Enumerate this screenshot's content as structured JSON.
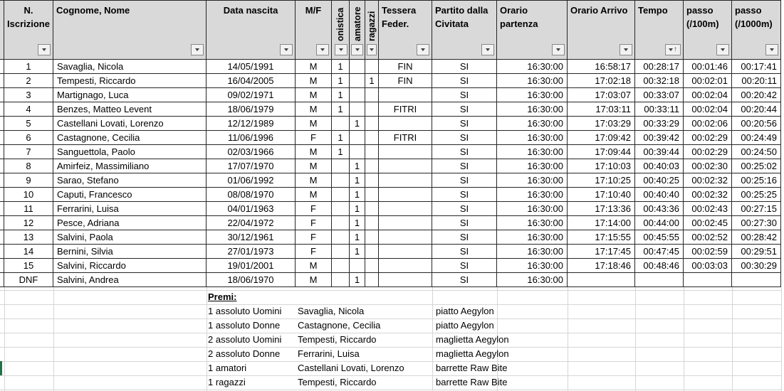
{
  "colors": {
    "header_bg": "#D9D9D9",
    "grid_border": "#262626",
    "faint_gridline": "#D6D6D6",
    "selection_green": "#217346"
  },
  "table": {
    "columns": [
      {
        "id": "n-iscrizione",
        "label": "N.\nIscrizione",
        "filter": true
      },
      {
        "id": "cognome-nome",
        "label": "Cognome, Nome",
        "filter": true
      },
      {
        "id": "data-nascita",
        "label": "Data nascita",
        "filter": true
      },
      {
        "id": "mf",
        "label": "M/F",
        "filter": true
      },
      {
        "id": "agonistica",
        "label": "onistica",
        "rotated": true,
        "filter": true
      },
      {
        "id": "amatore",
        "label": "amatore",
        "rotated": true,
        "filter": true
      },
      {
        "id": "ragazzi",
        "label": "ragazzi",
        "rotated": true,
        "filter": true
      },
      {
        "id": "tessera-feder",
        "label": "Tessera\nFeder.",
        "filter": true
      },
      {
        "id": "partito-dalla-civitata",
        "label": "Partito dalla\nCivitata",
        "filter": true
      },
      {
        "id": "orario-partenza",
        "label": "Orario\npartenza",
        "filter": true
      },
      {
        "id": "orario-arrivo",
        "label": "Orario Arrivo",
        "filter": true
      },
      {
        "id": "tempo",
        "label": "Tempo",
        "filter": true,
        "sorted": "asc"
      },
      {
        "id": "passo-100m",
        "label": "passo\n(/100m)",
        "filter": true
      },
      {
        "id": "passo-1000m",
        "label": "passo\n(/1000m)",
        "filter": true
      }
    ],
    "rows": [
      [
        "1",
        "Savaglia, Nicola",
        "14/05/1991",
        "M",
        "1",
        "",
        "",
        "FIN",
        "SI",
        "16:30:00",
        "16:58:17",
        "00:28:17",
        "00:01:46",
        "00:17:41"
      ],
      [
        "2",
        "Tempesti, Riccardo",
        "16/04/2005",
        "M",
        "1",
        "",
        "1",
        "FIN",
        "SI",
        "16:30:00",
        "17:02:18",
        "00:32:18",
        "00:02:01",
        "00:20:11"
      ],
      [
        "3",
        "Martignago, Luca",
        "09/02/1971",
        "M",
        "1",
        "",
        "",
        "",
        "SI",
        "16:30:00",
        "17:03:07",
        "00:33:07",
        "00:02:04",
        "00:20:42"
      ],
      [
        "4",
        "Benzes, Matteo Levent",
        "18/06/1979",
        "M",
        "1",
        "",
        "",
        "FITRI",
        "SI",
        "16:30:00",
        "17:03:11",
        "00:33:11",
        "00:02:04",
        "00:20:44"
      ],
      [
        "5",
        "Castellani Lovati, Lorenzo",
        "12/12/1989",
        "M",
        "",
        "1",
        "",
        "",
        "SI",
        "16:30:00",
        "17:03:29",
        "00:33:29",
        "00:02:06",
        "00:20:56"
      ],
      [
        "6",
        "Castagnone, Cecilia",
        "11/06/1996",
        "F",
        "1",
        "",
        "",
        "FITRI",
        "SI",
        "16:30:00",
        "17:09:42",
        "00:39:42",
        "00:02:29",
        "00:24:49"
      ],
      [
        "7",
        "Sanguettola, Paolo",
        "02/03/1966",
        "M",
        "1",
        "",
        "",
        "",
        "SI",
        "16:30:00",
        "17:09:44",
        "00:39:44",
        "00:02:29",
        "00:24:50"
      ],
      [
        "8",
        "Amirfeiz, Massimiliano",
        "17/07/1970",
        "M",
        "",
        "1",
        "",
        "",
        "SI",
        "16:30:00",
        "17:10:03",
        "00:40:03",
        "00:02:30",
        "00:25:02"
      ],
      [
        "9",
        "Sarao, Stefano",
        "01/06/1992",
        "M",
        "",
        "1",
        "",
        "",
        "SI",
        "16:30:00",
        "17:10:25",
        "00:40:25",
        "00:02:32",
        "00:25:16"
      ],
      [
        "10",
        "Caputi, Francesco",
        "08/08/1970",
        "M",
        "",
        "1",
        "",
        "",
        "SI",
        "16:30:00",
        "17:10:40",
        "00:40:40",
        "00:02:32",
        "00:25:25"
      ],
      [
        "11",
        "Ferrarini, Luisa",
        "04/01/1963",
        "F",
        "",
        "1",
        "",
        "",
        "SI",
        "16:30:00",
        "17:13:36",
        "00:43:36",
        "00:02:43",
        "00:27:15"
      ],
      [
        "12",
        "Pesce, Adriana",
        "22/04/1972",
        "F",
        "",
        "1",
        "",
        "",
        "SI",
        "16:30:00",
        "17:14:00",
        "00:44:00",
        "00:02:45",
        "00:27:30"
      ],
      [
        "13",
        "Salvini, Paola",
        "30/12/1961",
        "F",
        "",
        "1",
        "",
        "",
        "SI",
        "16:30:00",
        "17:15:55",
        "00:45:55",
        "00:02:52",
        "00:28:42"
      ],
      [
        "14",
        "Bernini, Silvia",
        "27/01/1973",
        "F",
        "",
        "1",
        "",
        "",
        "SI",
        "16:30:00",
        "17:17:45",
        "00:47:45",
        "00:02:59",
        "00:29:51"
      ],
      [
        "15",
        "Salvini, Riccardo",
        "19/01/2001",
        "M",
        "",
        "",
        "",
        "",
        "SI",
        "16:30:00",
        "17:18:46",
        "00:48:46",
        "00:03:03",
        "00:30:29"
      ],
      [
        "DNF",
        "Salvini, Andrea",
        "18/06/1970",
        "M",
        "",
        "1",
        "",
        "",
        "SI",
        "16:30:00",
        "",
        "",
        "",
        ""
      ]
    ]
  },
  "premi": {
    "title": "Premi:",
    "rows": [
      {
        "category": "1 assoluto Uomini",
        "winner": "Savaglia, Nicola",
        "prize": "piatto Aegylon"
      },
      {
        "category": "1 assoluto Donne",
        "winner": "Castagnone, Cecilia",
        "prize": "piatto Aegylon"
      },
      {
        "category": "2 assoluto Uomini",
        "winner": "Tempesti, Riccardo",
        "prize": "maglietta Aegylon"
      },
      {
        "category": "2 assoluto Donne",
        "winner": "Ferrarini, Luisa",
        "prize": "maglietta Aegylon"
      },
      {
        "category": "1 amatori",
        "winner": "Castellani Lovati, Lorenzo",
        "prize": "barrette Raw Bite"
      },
      {
        "category": "1 ragazzi",
        "winner": "Tempesti, Riccardo",
        "prize": "barrette Raw Bite"
      }
    ]
  }
}
